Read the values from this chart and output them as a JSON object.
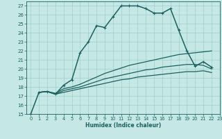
{
  "xlabel": "Humidex (Indice chaleur)",
  "xlim": [
    -0.5,
    23
  ],
  "ylim": [
    15,
    27.5
  ],
  "xticks": [
    0,
    1,
    2,
    3,
    4,
    5,
    6,
    7,
    8,
    9,
    10,
    11,
    12,
    13,
    14,
    15,
    16,
    17,
    18,
    19,
    20,
    21,
    22,
    23
  ],
  "yticks": [
    15,
    16,
    17,
    18,
    19,
    20,
    21,
    22,
    23,
    24,
    25,
    26,
    27
  ],
  "bg_color": "#c5e8e4",
  "line_color": "#1a6060",
  "grid_color": "#9fcfca",
  "lines": [
    {
      "x": [
        0,
        1,
        2,
        3,
        4,
        5,
        6,
        7,
        8,
        9,
        10,
        11,
        12,
        13,
        14,
        15,
        16,
        17,
        18,
        19,
        20,
        21,
        22
      ],
      "y": [
        15,
        17.4,
        17.5,
        17.2,
        18.2,
        18.8,
        21.8,
        23.0,
        24.8,
        24.6,
        25.8,
        27.0,
        27.0,
        27.0,
        26.7,
        26.2,
        26.2,
        26.7,
        24.3,
        22.0,
        20.3,
        20.8,
        20.2
      ],
      "marker": "+",
      "ms": 3.5,
      "lw": 1.1
    },
    {
      "x": [
        1,
        2,
        3,
        4,
        5,
        6,
        7,
        8,
        9,
        10,
        11,
        12,
        13,
        14,
        15,
        16,
        17,
        18,
        19,
        20,
        21,
        22
      ],
      "y": [
        17.4,
        17.5,
        17.3,
        17.8,
        18.0,
        18.3,
        18.7,
        19.1,
        19.5,
        19.8,
        20.1,
        20.4,
        20.6,
        20.8,
        21.0,
        21.2,
        21.4,
        21.6,
        21.7,
        21.8,
        21.9,
        22.0
      ],
      "marker": null,
      "ms": null,
      "lw": 0.9
    },
    {
      "x": [
        1,
        2,
        3,
        4,
        5,
        6,
        7,
        8,
        9,
        10,
        11,
        12,
        13,
        14,
        15,
        16,
        17,
        18,
        19,
        20,
        21,
        22
      ],
      "y": [
        17.4,
        17.5,
        17.2,
        17.6,
        17.8,
        18.0,
        18.3,
        18.6,
        18.9,
        19.1,
        19.3,
        19.5,
        19.7,
        19.9,
        20.0,
        20.2,
        20.3,
        20.4,
        20.5,
        20.5,
        20.4,
        20.0
      ],
      "marker": null,
      "ms": null,
      "lw": 0.9
    },
    {
      "x": [
        1,
        2,
        3,
        4,
        5,
        6,
        7,
        8,
        9,
        10,
        11,
        12,
        13,
        14,
        15,
        16,
        17,
        18,
        19,
        20,
        21,
        22
      ],
      "y": [
        17.4,
        17.5,
        17.2,
        17.4,
        17.6,
        17.8,
        18.0,
        18.2,
        18.4,
        18.6,
        18.8,
        18.9,
        19.1,
        19.2,
        19.3,
        19.4,
        19.5,
        19.6,
        19.7,
        19.7,
        19.8,
        19.6
      ],
      "marker": null,
      "ms": null,
      "lw": 0.9
    }
  ]
}
